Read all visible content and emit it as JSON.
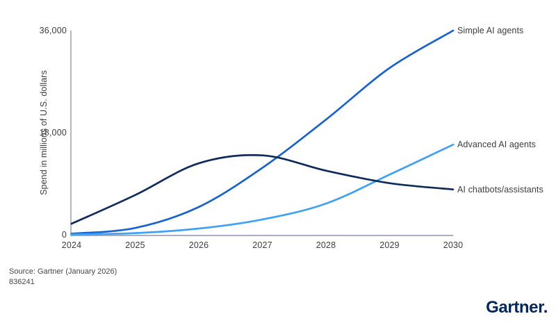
{
  "chart_data": {
    "type": "line",
    "title": "",
    "xlabel": "",
    "ylabel": "Spend in millions of U.S. dollars",
    "x": [
      2024,
      2025,
      2026,
      2027,
      2028,
      2029,
      2030
    ],
    "ylim": [
      0,
      36000
    ],
    "yticks": [
      {
        "value": 0,
        "label": "0"
      },
      {
        "value": 18000,
        "label": "18,000"
      },
      {
        "value": 36000,
        "label": "36,000"
      }
    ],
    "grid": false,
    "legend_position": "labels-at-line-ends-right",
    "series": [
      {
        "name": "Simple AI agents",
        "color": "#1862cf",
        "values": [
          200,
          1200,
          4900,
          11800,
          20300,
          29400,
          36000
        ]
      },
      {
        "name": "Advanced AI agents",
        "color": "#3fa1f6",
        "values": [
          50,
          300,
          1100,
          2700,
          5500,
          10600,
          15900
        ]
      },
      {
        "name": "AI chatbots/assistants",
        "color": "#0f2b5a",
        "values": [
          1950,
          7000,
          12600,
          14000,
          11300,
          9100,
          8000
        ]
      }
    ]
  },
  "footer": {
    "source_line": "Source: Gartner (January 2026)",
    "doc_id": "836241",
    "brand": "Gartner."
  },
  "colors": {
    "axis": "#9ca3b8",
    "text": "#3c3c3c",
    "brand_navy": "#00285e"
  }
}
